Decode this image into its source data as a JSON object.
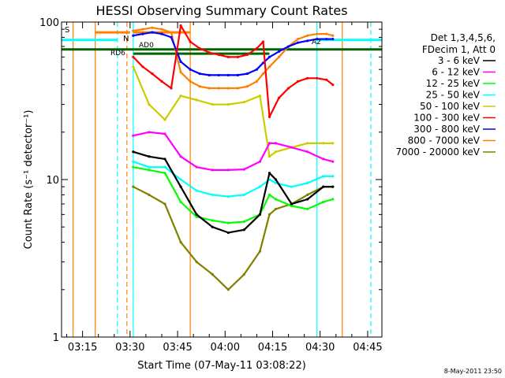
{
  "chart_data": {
    "type": "line",
    "title": "HESSI Observing Summary Count Rates",
    "xlabel": "Start Time (07-May-11 03:08:22)",
    "ylabel": "Count Rate (s⁻¹ detector⁻¹)",
    "yscale": "log",
    "ylim": [
      1,
      100
    ],
    "xlim": [
      "03:08:22",
      "04:49:30"
    ],
    "x_ticks": [
      "03:15",
      "03:30",
      "03:45",
      "04:00",
      "04:15",
      "04:30",
      "04:45"
    ],
    "y_ticks": [
      "1",
      "10",
      "100"
    ],
    "legend_header": [
      "Det 1,3,4,5,6,",
      "FDecim 1, Att 0"
    ],
    "legend_position": "right",
    "series": [
      {
        "name": "3 - 6 keV",
        "color": "#000000",
        "x": [
          "03:31",
          "03:36",
          "03:41",
          "03:46",
          "03:51",
          "03:56",
          "04:01",
          "04:06",
          "04:11",
          "04:14",
          "04:16",
          "04:21",
          "04:26",
          "04:31",
          "04:34"
        ],
        "y": [
          15,
          14,
          13.5,
          9,
          6,
          5,
          4.6,
          4.8,
          6,
          11,
          10,
          7,
          7.5,
          9,
          9
        ]
      },
      {
        "name": "6 - 12 keV",
        "color": "#ff00ff",
        "x": [
          "03:31",
          "03:36",
          "03:41",
          "03:46",
          "03:51",
          "03:56",
          "04:01",
          "04:06",
          "04:11",
          "04:14",
          "04:16",
          "04:21",
          "04:26",
          "04:31",
          "04:34"
        ],
        "y": [
          19,
          20,
          19.5,
          14,
          12,
          11.5,
          11.5,
          11.6,
          13,
          17,
          17,
          16,
          15,
          13.5,
          13
        ]
      },
      {
        "name": "12 - 25 keV",
        "color": "#00ff00",
        "x": [
          "03:31",
          "03:36",
          "03:41",
          "03:46",
          "03:51",
          "03:56",
          "04:01",
          "04:06",
          "04:11",
          "04:14",
          "04:16",
          "04:21",
          "04:26",
          "04:31",
          "04:34"
        ],
        "y": [
          12,
          11.5,
          11,
          7.2,
          5.8,
          5.5,
          5.3,
          5.4,
          6,
          8,
          7.5,
          6.8,
          6.5,
          7.2,
          7.5
        ]
      },
      {
        "name": "25 - 50 keV",
        "color": "#00ffff",
        "x": [
          "03:31",
          "03:36",
          "03:41",
          "03:46",
          "03:51",
          "03:56",
          "04:01",
          "04:06",
          "04:11",
          "04:14",
          "04:16",
          "04:21",
          "04:26",
          "04:31",
          "04:34"
        ],
        "y": [
          13,
          12,
          12,
          10,
          8.5,
          8,
          7.8,
          8,
          9,
          10,
          9.5,
          9,
          9.5,
          10.5,
          10.5
        ]
      },
      {
        "name": "50 - 100 keV",
        "color": "#cccc00",
        "x": [
          "03:31",
          "03:36",
          "03:41",
          "03:46",
          "03:51",
          "03:56",
          "04:01",
          "04:06",
          "04:11",
          "04:14",
          "04:16",
          "04:21",
          "04:26",
          "04:31",
          "04:34"
        ],
        "y": [
          52,
          30,
          24,
          34,
          32,
          30,
          30,
          31,
          34,
          14,
          15,
          16,
          17,
          17,
          17
        ]
      },
      {
        "name": "100 - 300 keV",
        "color": "#ff0000",
        "x": [
          "03:31",
          "03:34",
          "03:37",
          "03:40",
          "03:43",
          "03:46",
          "03:49",
          "03:52",
          "03:55",
          "03:58",
          "04:01",
          "04:04",
          "04:07",
          "04:10",
          "04:12",
          "04:14",
          "04:17",
          "04:20",
          "04:23",
          "04:26",
          "04:29",
          "04:32",
          "04:34"
        ],
        "y": [
          60,
          52,
          47,
          42,
          38,
          95,
          75,
          68,
          64,
          62,
          60,
          60,
          62,
          68,
          75,
          25,
          33,
          38,
          42,
          44,
          44,
          43,
          40
        ]
      },
      {
        "name": "300 - 800 keV",
        "color": "#0000ff",
        "x": [
          "03:31",
          "03:34",
          "03:37",
          "03:40",
          "03:43",
          "03:46",
          "03:49",
          "03:52",
          "03:55",
          "03:58",
          "04:01",
          "04:04",
          "04:07",
          "04:10",
          "04:12",
          "04:14",
          "04:17",
          "04:20",
          "04:23",
          "04:26",
          "04:29",
          "04:32",
          "04:34"
        ],
        "y": [
          82,
          84,
          86,
          84,
          80,
          56,
          50,
          47,
          46,
          46,
          46,
          46,
          47,
          50,
          55,
          60,
          65,
          70,
          74,
          76,
          78,
          78,
          78
        ]
      },
      {
        "name": "800 - 7000 keV",
        "color": "#ff8000",
        "x": [
          "03:31",
          "03:34",
          "03:37",
          "03:40",
          "03:43",
          "03:46",
          "03:49",
          "03:52",
          "03:55",
          "03:58",
          "04:01",
          "04:04",
          "04:07",
          "04:10",
          "04:12",
          "04:14",
          "04:17",
          "04:20",
          "04:23",
          "04:26",
          "04:29",
          "04:32",
          "04:34"
        ],
        "y": [
          88,
          90,
          92,
          90,
          86,
          48,
          42,
          39,
          38,
          38,
          38,
          38,
          39,
          42,
          47,
          52,
          60,
          70,
          78,
          82,
          84,
          84,
          82
        ]
      },
      {
        "name": "7000 - 20000 keV",
        "color": "#808000",
        "x": [
          "03:31",
          "03:36",
          "03:41",
          "03:46",
          "03:51",
          "03:56",
          "04:01",
          "04:06",
          "04:11",
          "04:14",
          "04:16",
          "04:21",
          "04:26",
          "04:31",
          "04:34"
        ],
        "y": [
          9,
          8,
          7,
          4,
          3,
          2.5,
          2,
          2.5,
          3.5,
          6,
          6.5,
          7,
          8,
          9,
          9
        ]
      }
    ],
    "annotations": {
      "flags": [
        "S",
        "N",
        "AD0",
        "RD6",
        "A2"
      ]
    },
    "vertical_markers": [
      {
        "x": "03:12",
        "color": "#ff8000",
        "style": "solid"
      },
      {
        "x": "03:19",
        "color": "#ff8000",
        "style": "solid"
      },
      {
        "x": "03:26",
        "color": "#00ffff",
        "style": "dashed"
      },
      {
        "x": "03:29",
        "color": "#ff8000",
        "style": "dashed"
      },
      {
        "x": "03:31",
        "color": "#00ffff",
        "style": "solid"
      },
      {
        "x": "03:49",
        "color": "#ff8000",
        "style": "solid"
      },
      {
        "x": "04:29",
        "color": "#00ffff",
        "style": "solid"
      },
      {
        "x": "04:37",
        "color": "#ff8000",
        "style": "solid"
      },
      {
        "x": "04:46",
        "color": "#00ffff",
        "style": "dashed"
      }
    ],
    "flag_bars": [
      {
        "color": "#00ffff",
        "y": 77,
        "segments": [
          [
            "03:08:22",
            "03:26"
          ],
          [
            "04:29",
            "04:49:30"
          ]
        ]
      },
      {
        "color": "#ff8000",
        "y": 86,
        "segments": [
          [
            "03:19",
            "03:30"
          ],
          [
            "03:31",
            "03:49"
          ]
        ]
      },
      {
        "color": "#006400",
        "y": 67,
        "segments": [
          [
            "03:08:22",
            "04:49:30"
          ]
        ]
      },
      {
        "color": "#006400",
        "y": 63,
        "segments": [
          [
            "03:31",
            "04:14"
          ]
        ]
      }
    ]
  },
  "footer": {
    "date_stamp": "8-May-2011 23:50"
  }
}
